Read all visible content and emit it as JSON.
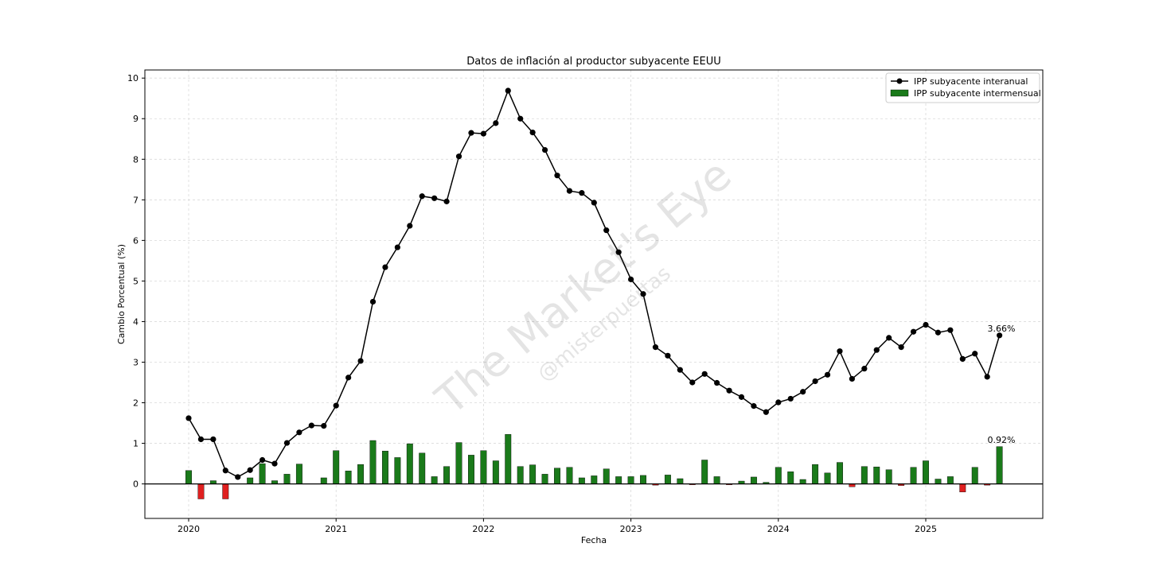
{
  "chart_data": {
    "type": "bar",
    "title": "Datos de inflación al productor subyacente EEUU",
    "xlabel": "Fecha",
    "ylabel": "Cambio Porcentual (%)",
    "ylim": [
      -0.85,
      10.2
    ],
    "yticks": [
      0,
      1,
      2,
      3,
      4,
      5,
      6,
      7,
      8,
      9,
      10
    ],
    "xticks": [
      "2020",
      "2021",
      "2022",
      "2023",
      "2024",
      "2025"
    ],
    "grid": true,
    "legend_position": "top-right",
    "x_start": "2020-01",
    "x_frequency": "monthly",
    "x": [
      "2020-01",
      "2020-02",
      "2020-03",
      "2020-04",
      "2020-05",
      "2020-06",
      "2020-07",
      "2020-08",
      "2020-09",
      "2020-10",
      "2020-11",
      "2020-12",
      "2021-01",
      "2021-02",
      "2021-03",
      "2021-04",
      "2021-05",
      "2021-06",
      "2021-07",
      "2021-08",
      "2021-09",
      "2021-10",
      "2021-11",
      "2021-12",
      "2022-01",
      "2022-02",
      "2022-03",
      "2022-04",
      "2022-05",
      "2022-06",
      "2022-07",
      "2022-08",
      "2022-09",
      "2022-10",
      "2022-11",
      "2022-12",
      "2023-01",
      "2023-02",
      "2023-03",
      "2023-04",
      "2023-05",
      "2023-06",
      "2023-07",
      "2023-08",
      "2023-09",
      "2023-10",
      "2023-11",
      "2023-12",
      "2024-01",
      "2024-02",
      "2024-03",
      "2024-04",
      "2024-05",
      "2024-06",
      "2024-07",
      "2024-08",
      "2024-09",
      "2024-10",
      "2024-11",
      "2024-12",
      "2025-01",
      "2025-02",
      "2025-03",
      "2025-04",
      "2025-05",
      "2025-06",
      "2025-07"
    ],
    "series": [
      {
        "name": "IPP subyacente interanual",
        "kind": "line",
        "color": "#000000",
        "values": [
          1.62,
          1.1,
          1.1,
          0.33,
          0.17,
          0.34,
          0.59,
          0.5,
          1.01,
          1.27,
          1.44,
          1.43,
          1.93,
          2.62,
          3.03,
          4.49,
          5.34,
          5.83,
          6.36,
          7.09,
          7.04,
          6.96,
          8.07,
          8.65,
          8.63,
          8.89,
          9.69,
          9.0,
          8.66,
          8.23,
          7.6,
          7.22,
          7.17,
          6.93,
          6.25,
          5.71,
          5.04,
          4.68,
          3.37,
          3.16,
          2.81,
          2.5,
          2.71,
          2.49,
          2.3,
          2.14,
          1.92,
          1.77,
          2.01,
          2.1,
          2.27,
          2.53,
          2.69,
          3.27,
          2.59,
          2.84,
          3.3,
          3.6,
          3.37,
          3.75,
          3.92,
          3.73,
          3.79,
          3.08,
          3.21,
          2.64,
          3.66
        ]
      },
      {
        "name": "IPP subyacente intermensual",
        "kind": "bar",
        "color": "#1a7a1a",
        "negative_color": "#e02020",
        "values": [
          0.33,
          -0.37,
          0.08,
          -0.37,
          0.0,
          0.15,
          0.5,
          0.08,
          0.24,
          0.49,
          0.0,
          0.15,
          0.82,
          0.32,
          0.48,
          1.07,
          0.81,
          0.65,
          0.99,
          0.76,
          0.18,
          0.43,
          1.02,
          0.71,
          0.82,
          0.57,
          1.22,
          0.43,
          0.47,
          0.24,
          0.39,
          0.41,
          0.15,
          0.2,
          0.37,
          0.18,
          0.18,
          0.21,
          -0.03,
          0.22,
          0.13,
          -0.02,
          0.59,
          0.18,
          -0.02,
          0.07,
          0.17,
          0.04,
          0.41,
          0.3,
          0.11,
          0.48,
          0.27,
          0.53,
          -0.07,
          0.43,
          0.42,
          0.35,
          -0.04,
          0.41,
          0.57,
          0.12,
          0.18,
          -0.2,
          0.41,
          -0.03,
          0.92
        ]
      }
    ],
    "annotations": [
      "3.66%",
      "0.92%"
    ],
    "watermark": [
      "The Market's Eye",
      "@misterpuertas"
    ]
  }
}
